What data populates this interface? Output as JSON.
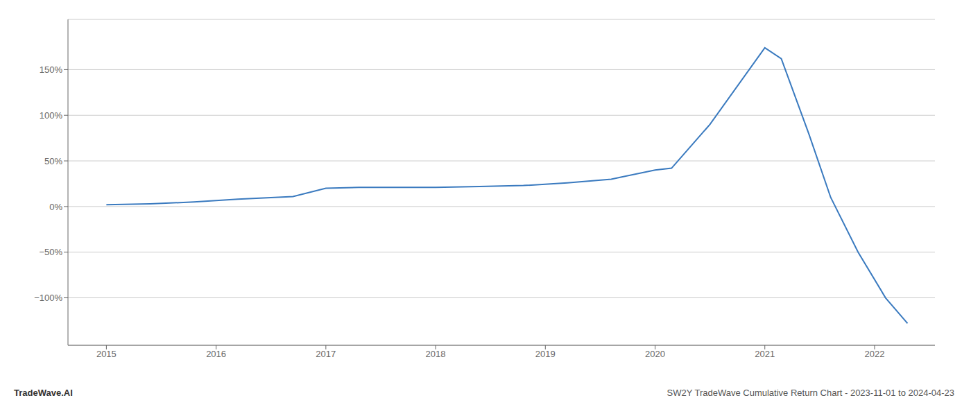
{
  "chart_data": {
    "type": "line",
    "title": "SW2Y TradeWave Cumulative Return Chart - 2023-11-01 to 2024-04-23",
    "annotations": [
      "TradeWave.AI"
    ],
    "x": [
      2015.0,
      2015.4,
      2015.8,
      2016.2,
      2016.7,
      2017.0,
      2017.3,
      2017.7,
      2018.0,
      2018.4,
      2018.8,
      2019.2,
      2019.6,
      2020.0,
      2020.15,
      2020.5,
      2021.0,
      2021.15,
      2021.4,
      2021.6,
      2021.85,
      2022.1,
      2022.3
    ],
    "values": [
      2,
      3,
      5,
      8,
      11,
      20,
      21,
      21,
      21,
      22,
      23,
      26,
      30,
      40,
      42,
      90,
      174,
      162,
      80,
      10,
      -50,
      -100,
      -128
    ],
    "color": "#3a7abf",
    "xlim": [
      2014.65,
      2022.55
    ],
    "xticks": [
      2015,
      2016,
      2017,
      2018,
      2019,
      2020,
      2021,
      2022
    ],
    "ylim": [
      -152,
      205
    ],
    "yticks": [
      {
        "value": -100,
        "label": "−100%"
      },
      {
        "value": -50,
        "label": "−50%"
      },
      {
        "value": 0,
        "label": "0%"
      },
      {
        "value": 50,
        "label": "50%"
      },
      {
        "value": 100,
        "label": "100%"
      },
      {
        "value": 150,
        "label": "150%"
      }
    ],
    "grid": "y"
  }
}
